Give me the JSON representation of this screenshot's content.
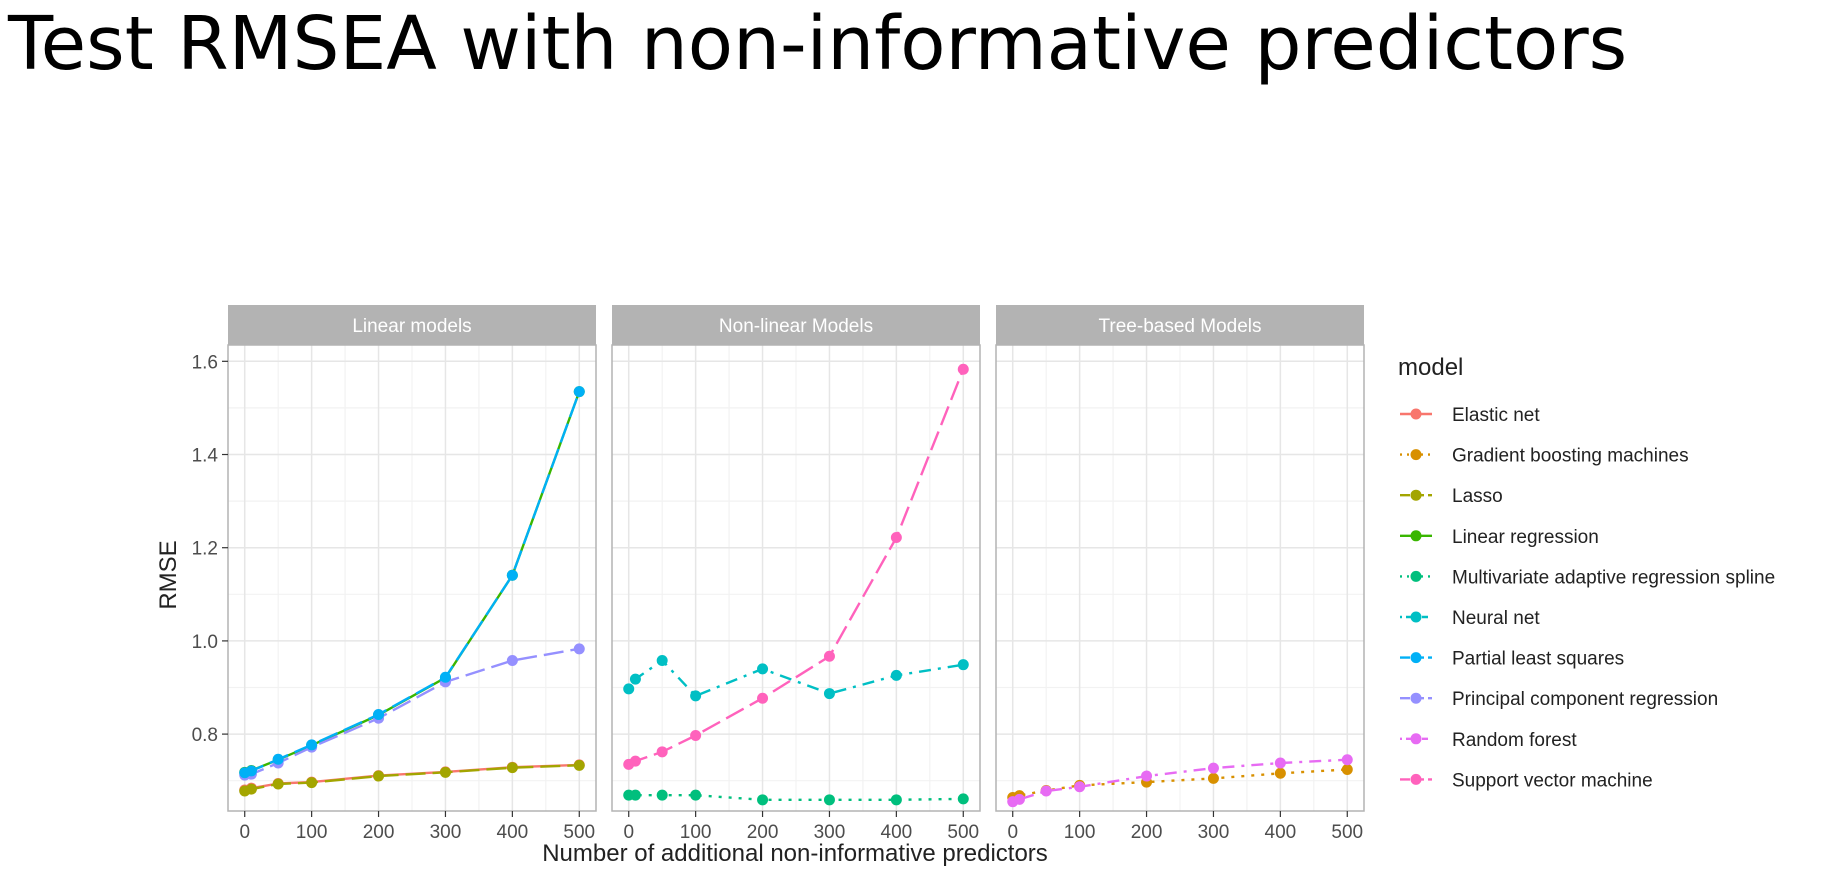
{
  "slide": {
    "title": "Test RMSEA with non-informative predictors"
  },
  "chart_data": {
    "type": "line",
    "xlabel": "Number of additional non-informative predictors",
    "ylabel": "RMSE",
    "xlim": [
      -25,
      525
    ],
    "ylim": [
      0.635,
      1.635
    ],
    "x_ticks": [
      0,
      100,
      200,
      300,
      400,
      500
    ],
    "y_ticks": [
      0.8,
      1.0,
      1.2,
      1.4,
      1.6
    ],
    "grid": true,
    "legend_position": "right",
    "legend_title": "model",
    "x": [
      0,
      10,
      50,
      100,
      200,
      300,
      400,
      500
    ],
    "panels": [
      {
        "name": "Linear models",
        "series": [
          {
            "name": "Elastic net",
            "color": "#F8766D",
            "dash": "solid",
            "values": [
              0.68,
              0.684,
              0.694,
              0.697,
              0.711,
              0.719,
              0.729,
              0.734
            ]
          },
          {
            "name": "Lasso",
            "color": "#A3A500",
            "dash": "longdash",
            "values": [
              0.678,
              0.682,
              0.693,
              0.696,
              0.71,
              0.718,
              0.728,
              0.733
            ]
          },
          {
            "name": "Linear regression",
            "color": "#39B600",
            "dash": "solid",
            "values": [
              0.718,
              0.722,
              0.745,
              0.776,
              0.841,
              0.921,
              1.141,
              1.535
            ]
          },
          {
            "name": "Principal component regression",
            "color": "#9590FF",
            "dash": "longdash",
            "values": [
              0.712,
              0.714,
              0.738,
              0.772,
              0.834,
              0.912,
              0.958,
              0.983
            ]
          },
          {
            "name": "Partial least squares",
            "color": "#00B0F6",
            "dash": "longdash",
            "values": [
              0.717,
              0.721,
              0.746,
              0.777,
              0.842,
              0.922,
              1.141,
              1.535
            ]
          }
        ]
      },
      {
        "name": "Non-linear Models",
        "series": [
          {
            "name": "Multivariate adaptive regression spline",
            "color": "#00BF7D",
            "dash": "dotted",
            "values": [
              0.669,
              0.669,
              0.669,
              0.669,
              0.659,
              0.659,
              0.659,
              0.661
            ]
          },
          {
            "name": "Neural net",
            "color": "#00BFC4",
            "dash": "dotdash",
            "values": [
              0.897,
              0.918,
              0.958,
              0.882,
              0.94,
              0.887,
              0.926,
              0.949
            ]
          },
          {
            "name": "Support vector machine",
            "color": "#FF62BC",
            "dash": "longdash",
            "values": [
              0.735,
              0.742,
              0.762,
              0.797,
              0.877,
              0.967,
              1.222,
              1.583
            ]
          }
        ]
      },
      {
        "name": "Tree-based Models",
        "series": [
          {
            "name": "Gradient boosting machines",
            "color": "#D89000",
            "dash": "dotted",
            "values": [
              0.664,
              0.668,
              0.679,
              0.69,
              0.697,
              0.705,
              0.716,
              0.724
            ]
          },
          {
            "name": "Random forest",
            "color": "#E76BF3",
            "dash": "dotdash",
            "values": [
              0.655,
              0.66,
              0.678,
              0.687,
              0.71,
              0.727,
              0.738,
              0.745
            ]
          }
        ]
      }
    ],
    "legend": [
      {
        "label": "Elastic net",
        "color": "#F8766D",
        "dash": "solid"
      },
      {
        "label": "Gradient boosting machines",
        "color": "#D89000",
        "dash": "dotted"
      },
      {
        "label": "Lasso",
        "color": "#A3A500",
        "dash": "longdash"
      },
      {
        "label": "Linear regression",
        "color": "#39B600",
        "dash": "solid"
      },
      {
        "label": "Multivariate adaptive regression spline",
        "color": "#00BF7D",
        "dash": "dotted"
      },
      {
        "label": "Neural net",
        "color": "#00BFC4",
        "dash": "dotdash"
      },
      {
        "label": "Partial least squares",
        "color": "#00B0F6",
        "dash": "longdash"
      },
      {
        "label": "Principal component regression",
        "color": "#9590FF",
        "dash": "longdash"
      },
      {
        "label": "Random forest",
        "color": "#E76BF3",
        "dash": "dotdash"
      },
      {
        "label": "Support vector machine",
        "color": "#FF62BC",
        "dash": "longdash"
      }
    ],
    "colors": {
      "strip_bg": "#B3B3B3",
      "panel_border": "#B3B3B3",
      "grid_major": "#E6E6E6",
      "grid_minor": "#F2F2F2",
      "text": "#4D4D4D"
    }
  }
}
